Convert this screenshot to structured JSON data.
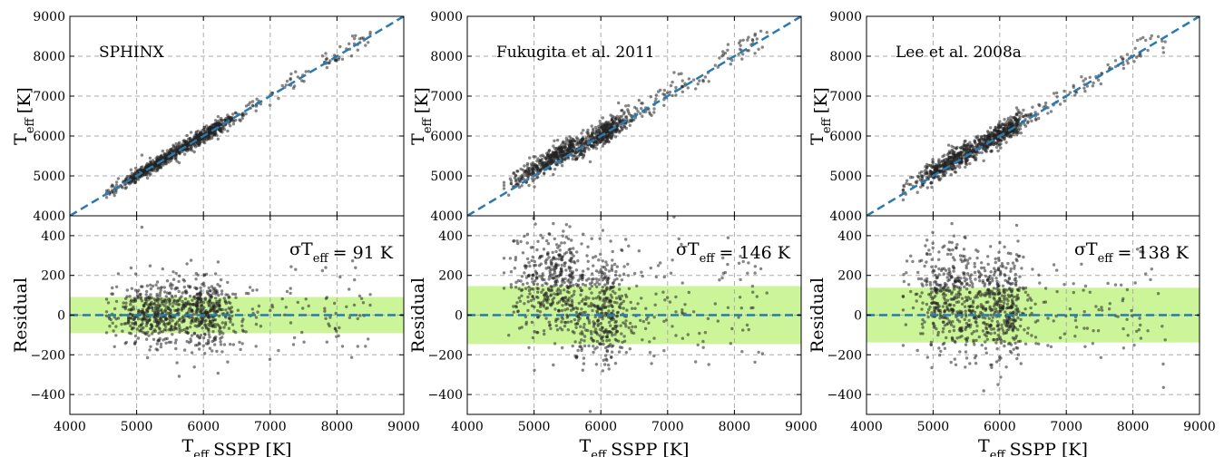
{
  "figure": {
    "panels_count": 3
  },
  "colors": {
    "points": "#222222",
    "one_to_one_line": "#2a7ab0",
    "zero_line": "#2a7ab0",
    "sigma_band": "#ccf59a",
    "grid": "#aaaaaa"
  },
  "chart_data": [
    {
      "type": "scatter",
      "name_label": "SPHINX",
      "sigma_label": "σT",
      "sigma_sub": "eff",
      "sigma_value": "= 91 K",
      "sigma": 91,
      "xlabel": "SSPP [K]",
      "xlabel_prefix": "T",
      "xlabel_sub": "eff",
      "top": {
        "ylabel": "[K]",
        "ylabel_prefix": "T",
        "ylabel_sub": "eff",
        "ylim": [
          4000,
          9000
        ],
        "yticks": [
          4000,
          5000,
          6000,
          7000,
          8000,
          9000
        ]
      },
      "bottom": {
        "ylabel": "Residual",
        "ylim": [
          -500,
          500
        ],
        "yticks": [
          -400,
          -200,
          0,
          200,
          400
        ]
      },
      "xlim": [
        4000,
        9000
      ],
      "xticks": [
        4000,
        5000,
        6000,
        7000,
        8000,
        9000
      ],
      "grid": true,
      "reference_line": "y = x",
      "n_points": 900,
      "x_range": [
        4550,
        8500
      ],
      "residual_bias": 10
    },
    {
      "type": "scatter",
      "name_label": "Fukugita et al. 2011",
      "sigma_label": "σT",
      "sigma_sub": "eff",
      "sigma_value": "= 146 K",
      "sigma": 146,
      "xlabel": "SSPP [K]",
      "xlabel_prefix": "T",
      "xlabel_sub": "eff",
      "top": {
        "ylabel": "[K]",
        "ylabel_prefix": "T",
        "ylabel_sub": "eff",
        "ylim": [
          4000,
          9000
        ],
        "yticks": [
          4000,
          5000,
          6000,
          7000,
          8000,
          9000
        ]
      },
      "bottom": {
        "ylabel": "Residual",
        "ylim": [
          -500,
          500
        ],
        "yticks": [
          -400,
          -200,
          0,
          200,
          400
        ]
      },
      "xlim": [
        4000,
        9000
      ],
      "xticks": [
        4000,
        5000,
        6000,
        7000,
        8000,
        9000
      ],
      "grid": true,
      "reference_line": "y = x",
      "n_points": 900,
      "x_range": [
        4550,
        8500
      ],
      "residual_bias": 90
    },
    {
      "type": "scatter",
      "name_label": "Lee et al. 2008a",
      "sigma_label": "σT",
      "sigma_sub": "eff",
      "sigma_value": "= 138 K",
      "sigma": 138,
      "xlabel": "SSPP [K]",
      "xlabel_prefix": "T",
      "xlabel_sub": "eff",
      "top": {
        "ylabel": "[K]",
        "ylabel_prefix": "T",
        "ylabel_sub": "eff",
        "ylim": [
          4000,
          9000
        ],
        "yticks": [
          4000,
          5000,
          6000,
          7000,
          8000,
          9000
        ]
      },
      "bottom": {
        "ylabel": "Residual",
        "ylim": [
          -500,
          500
        ],
        "yticks": [
          -400,
          -200,
          0,
          200,
          400
        ]
      },
      "xlim": [
        4000,
        9000
      ],
      "xticks": [
        4000,
        5000,
        6000,
        7000,
        8000,
        9000
      ],
      "grid": true,
      "reference_line": "y = x",
      "n_points": 900,
      "x_range": [
        4550,
        8500
      ],
      "residual_bias": 60
    }
  ]
}
